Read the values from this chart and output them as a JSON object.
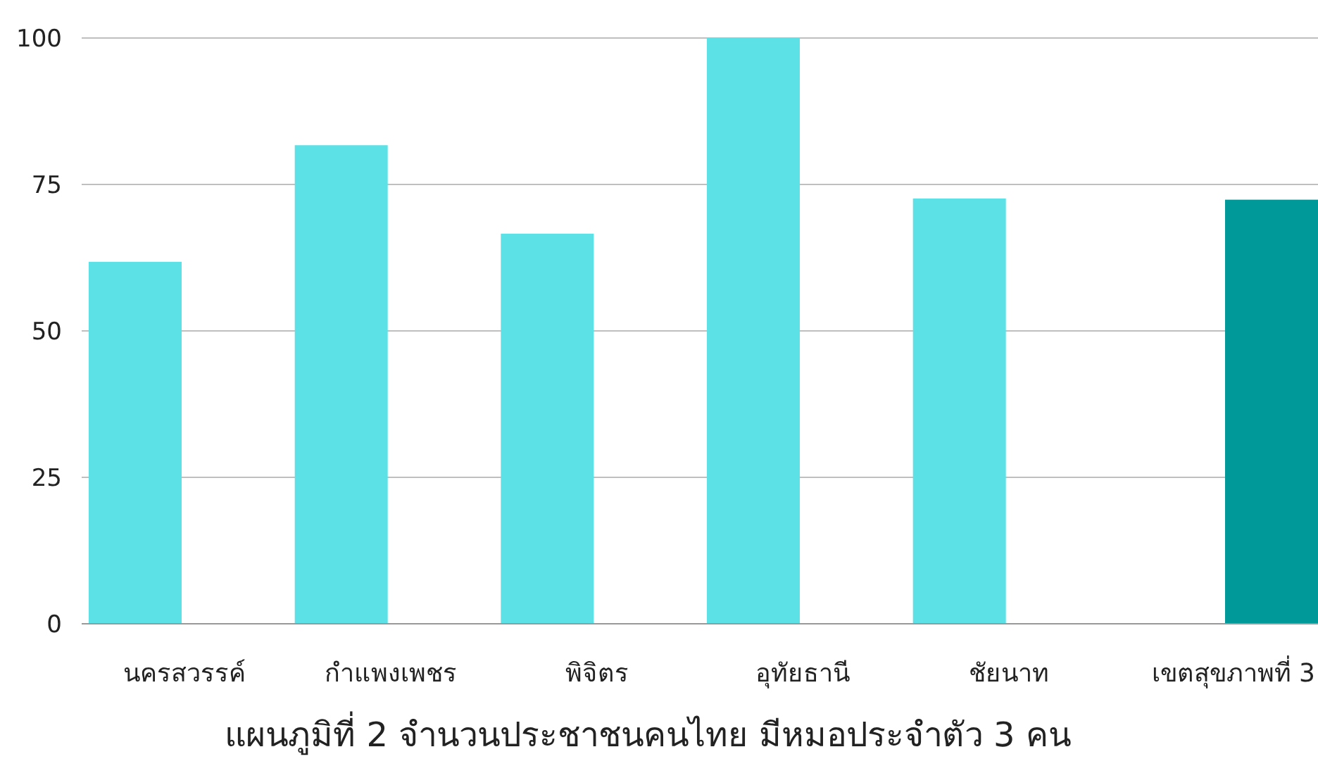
{
  "chart_data": {
    "type": "bar",
    "title": "แผนภูมิที่ 2 จำนวนประชาชนคนไทย มีหมอประจำตัว 3 คน",
    "categories": [
      "นครสวรรค์",
      "กำแพงเพชร",
      "พิจิตร",
      "อุทัยธานี",
      "ชัยนาท",
      "เขตสุขภาพที่ 3"
    ],
    "series": [
      {
        "color": "#5ce1e6",
        "values": [
          61.8,
          81.7,
          66.6,
          100,
          72.6,
          null
        ]
      },
      {
        "color": "#00999a",
        "values": [
          null,
          null,
          null,
          null,
          null,
          72.4
        ]
      }
    ],
    "ylim": [
      0,
      100
    ],
    "yticks": [
      0,
      25,
      50,
      75,
      100
    ],
    "grid": "y"
  }
}
